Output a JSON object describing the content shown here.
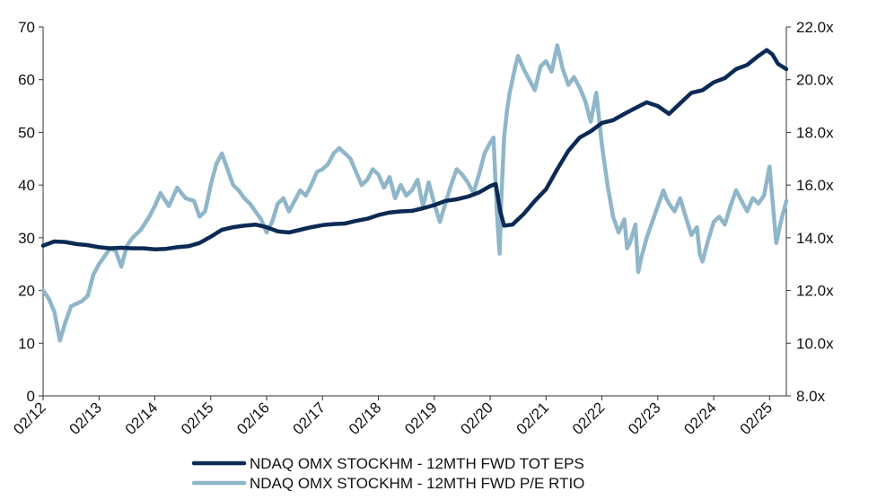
{
  "chart_data": {
    "type": "line",
    "grid": false,
    "legend_position": "bottom-center",
    "x_tick_labels": [
      "02/12",
      "02/13",
      "02/14",
      "02/15",
      "02/16",
      "02/17",
      "02/18",
      "02/19",
      "02/20",
      "02/21",
      "02/22",
      "02/23",
      "02/24",
      "02/25"
    ],
    "x_range": [
      2012.0,
      2025.3
    ],
    "y_left": {
      "range": [
        0,
        70
      ],
      "ticks": [
        "0",
        "10",
        "20",
        "30",
        "40",
        "50",
        "60",
        "70"
      ]
    },
    "y_right": {
      "range": [
        8,
        22
      ],
      "ticks": [
        "8.0x",
        "10.0x",
        "12.0x",
        "14.0x",
        "16.0x",
        "18.0x",
        "20.0x",
        "22.0x"
      ]
    },
    "series": [
      {
        "name": "NDAQ OMX STOCKHM - 12MTH FWD TOT EPS",
        "axis": "left",
        "color": "#0b2a55",
        "points": [
          [
            2012.0,
            28.5
          ],
          [
            2012.2,
            29.3
          ],
          [
            2012.4,
            29.2
          ],
          [
            2012.6,
            28.8
          ],
          [
            2012.8,
            28.6
          ],
          [
            2013.0,
            28.2
          ],
          [
            2013.2,
            28.0
          ],
          [
            2013.4,
            28.1
          ],
          [
            2013.6,
            28.0
          ],
          [
            2013.8,
            28.0
          ],
          [
            2014.0,
            27.8
          ],
          [
            2014.2,
            27.9
          ],
          [
            2014.4,
            28.2
          ],
          [
            2014.6,
            28.4
          ],
          [
            2014.8,
            29.0
          ],
          [
            2015.0,
            30.2
          ],
          [
            2015.2,
            31.5
          ],
          [
            2015.4,
            32.0
          ],
          [
            2015.6,
            32.3
          ],
          [
            2015.8,
            32.5
          ],
          [
            2016.0,
            32.0
          ],
          [
            2016.2,
            31.2
          ],
          [
            2016.4,
            31.0
          ],
          [
            2016.6,
            31.5
          ],
          [
            2016.8,
            32.0
          ],
          [
            2017.0,
            32.4
          ],
          [
            2017.2,
            32.6
          ],
          [
            2017.4,
            32.7
          ],
          [
            2017.6,
            33.2
          ],
          [
            2017.8,
            33.6
          ],
          [
            2018.0,
            34.3
          ],
          [
            2018.2,
            34.8
          ],
          [
            2018.4,
            35.0
          ],
          [
            2018.6,
            35.1
          ],
          [
            2018.8,
            35.6
          ],
          [
            2019.0,
            36.2
          ],
          [
            2019.2,
            37.0
          ],
          [
            2019.4,
            37.3
          ],
          [
            2019.6,
            37.8
          ],
          [
            2019.8,
            38.6
          ],
          [
            2020.0,
            39.8
          ],
          [
            2020.1,
            40.2
          ],
          [
            2020.18,
            35.0
          ],
          [
            2020.25,
            32.3
          ],
          [
            2020.4,
            32.5
          ],
          [
            2020.6,
            34.5
          ],
          [
            2020.8,
            37.0
          ],
          [
            2021.0,
            39.2
          ],
          [
            2021.2,
            43.0
          ],
          [
            2021.4,
            46.5
          ],
          [
            2021.6,
            49.0
          ],
          [
            2021.8,
            50.2
          ],
          [
            2022.0,
            51.8
          ],
          [
            2022.2,
            52.3
          ],
          [
            2022.4,
            53.5
          ],
          [
            2022.6,
            54.6
          ],
          [
            2022.8,
            55.7
          ],
          [
            2023.0,
            55.0
          ],
          [
            2023.2,
            53.5
          ],
          [
            2023.4,
            55.5
          ],
          [
            2023.6,
            57.5
          ],
          [
            2023.8,
            58.0
          ],
          [
            2024.0,
            59.5
          ],
          [
            2024.2,
            60.3
          ],
          [
            2024.4,
            62.0
          ],
          [
            2024.6,
            62.8
          ],
          [
            2024.8,
            64.5
          ],
          [
            2024.95,
            65.6
          ],
          [
            2025.05,
            64.8
          ],
          [
            2025.15,
            63.0
          ],
          [
            2025.3,
            62.0
          ]
        ]
      },
      {
        "name": "NDAQ OMX STOCKHM - 12MTH FWD P/E RTIO",
        "axis": "right",
        "color": "#8fb6c9",
        "points": [
          [
            2012.0,
            12.0
          ],
          [
            2012.1,
            11.7
          ],
          [
            2012.2,
            11.2
          ],
          [
            2012.3,
            10.1
          ],
          [
            2012.4,
            10.8
          ],
          [
            2012.5,
            11.4
          ],
          [
            2012.7,
            11.6
          ],
          [
            2012.8,
            11.8
          ],
          [
            2012.9,
            12.6
          ],
          [
            2013.0,
            13.0
          ],
          [
            2013.1,
            13.3
          ],
          [
            2013.2,
            13.6
          ],
          [
            2013.3,
            13.5
          ],
          [
            2013.4,
            12.9
          ],
          [
            2013.5,
            13.7
          ],
          [
            2013.6,
            14.0
          ],
          [
            2013.75,
            14.3
          ],
          [
            2013.9,
            14.8
          ],
          [
            2014.0,
            15.2
          ],
          [
            2014.1,
            15.7
          ],
          [
            2014.25,
            15.2
          ],
          [
            2014.4,
            15.9
          ],
          [
            2014.55,
            15.5
          ],
          [
            2014.7,
            15.4
          ],
          [
            2014.8,
            14.8
          ],
          [
            2014.9,
            15.0
          ],
          [
            2015.0,
            16.0
          ],
          [
            2015.1,
            16.8
          ],
          [
            2015.2,
            17.2
          ],
          [
            2015.3,
            16.6
          ],
          [
            2015.4,
            16.0
          ],
          [
            2015.5,
            15.8
          ],
          [
            2015.6,
            15.5
          ],
          [
            2015.7,
            15.3
          ],
          [
            2015.8,
            15.0
          ],
          [
            2015.9,
            14.7
          ],
          [
            2016.0,
            14.2
          ],
          [
            2016.1,
            14.6
          ],
          [
            2016.2,
            15.3
          ],
          [
            2016.3,
            15.5
          ],
          [
            2016.4,
            15.0
          ],
          [
            2016.5,
            15.4
          ],
          [
            2016.6,
            15.8
          ],
          [
            2016.7,
            15.6
          ],
          [
            2016.8,
            16.0
          ],
          [
            2016.9,
            16.5
          ],
          [
            2017.0,
            16.6
          ],
          [
            2017.1,
            16.8
          ],
          [
            2017.2,
            17.2
          ],
          [
            2017.3,
            17.4
          ],
          [
            2017.4,
            17.2
          ],
          [
            2017.5,
            17.0
          ],
          [
            2017.6,
            16.5
          ],
          [
            2017.7,
            16.0
          ],
          [
            2017.8,
            16.2
          ],
          [
            2017.9,
            16.6
          ],
          [
            2018.0,
            16.4
          ],
          [
            2018.1,
            15.9
          ],
          [
            2018.2,
            16.3
          ],
          [
            2018.3,
            15.5
          ],
          [
            2018.4,
            16.0
          ],
          [
            2018.5,
            15.6
          ],
          [
            2018.6,
            15.8
          ],
          [
            2018.7,
            16.2
          ],
          [
            2018.8,
            15.2
          ],
          [
            2018.9,
            16.1
          ],
          [
            2019.0,
            15.3
          ],
          [
            2019.1,
            14.6
          ],
          [
            2019.2,
            15.3
          ],
          [
            2019.3,
            16.0
          ],
          [
            2019.4,
            16.6
          ],
          [
            2019.5,
            16.4
          ],
          [
            2019.6,
            16.1
          ],
          [
            2019.7,
            15.7
          ],
          [
            2019.8,
            16.4
          ],
          [
            2019.9,
            17.2
          ],
          [
            2020.0,
            17.6
          ],
          [
            2020.06,
            17.8
          ],
          [
            2020.12,
            15.0
          ],
          [
            2020.17,
            13.4
          ],
          [
            2020.2,
            15.5
          ],
          [
            2020.25,
            17.8
          ],
          [
            2020.3,
            18.8
          ],
          [
            2020.35,
            19.5
          ],
          [
            2020.45,
            20.5
          ],
          [
            2020.5,
            20.9
          ],
          [
            2020.6,
            20.4
          ],
          [
            2020.7,
            20.0
          ],
          [
            2020.8,
            19.6
          ],
          [
            2020.9,
            20.5
          ],
          [
            2021.0,
            20.7
          ],
          [
            2021.1,
            20.3
          ],
          [
            2021.2,
            21.3
          ],
          [
            2021.3,
            20.4
          ],
          [
            2021.4,
            19.8
          ],
          [
            2021.5,
            20.1
          ],
          [
            2021.6,
            19.7
          ],
          [
            2021.7,
            19.2
          ],
          [
            2021.8,
            18.4
          ],
          [
            2021.9,
            19.5
          ],
          [
            2022.0,
            17.5
          ],
          [
            2022.1,
            16.0
          ],
          [
            2022.2,
            14.8
          ],
          [
            2022.3,
            14.2
          ],
          [
            2022.4,
            14.7
          ],
          [
            2022.45,
            13.6
          ],
          [
            2022.5,
            13.8
          ],
          [
            2022.6,
            14.5
          ],
          [
            2022.65,
            12.7
          ],
          [
            2022.7,
            13.2
          ],
          [
            2022.8,
            14.0
          ],
          [
            2022.9,
            14.6
          ],
          [
            2023.0,
            15.2
          ],
          [
            2023.1,
            15.8
          ],
          [
            2023.15,
            15.5
          ],
          [
            2023.2,
            15.3
          ],
          [
            2023.3,
            15.0
          ],
          [
            2023.4,
            15.5
          ],
          [
            2023.5,
            14.8
          ],
          [
            2023.6,
            14.1
          ],
          [
            2023.7,
            14.4
          ],
          [
            2023.75,
            13.4
          ],
          [
            2023.8,
            13.1
          ],
          [
            2023.9,
            13.9
          ],
          [
            2024.0,
            14.6
          ],
          [
            2024.1,
            14.8
          ],
          [
            2024.2,
            14.5
          ],
          [
            2024.3,
            15.2
          ],
          [
            2024.4,
            15.8
          ],
          [
            2024.5,
            15.4
          ],
          [
            2024.6,
            15.0
          ],
          [
            2024.7,
            15.5
          ],
          [
            2024.8,
            15.3
          ],
          [
            2024.9,
            15.6
          ],
          [
            2025.0,
            16.7
          ],
          [
            2025.05,
            15.5
          ],
          [
            2025.12,
            13.8
          ],
          [
            2025.2,
            14.6
          ],
          [
            2025.3,
            15.4
          ]
        ]
      }
    ]
  }
}
